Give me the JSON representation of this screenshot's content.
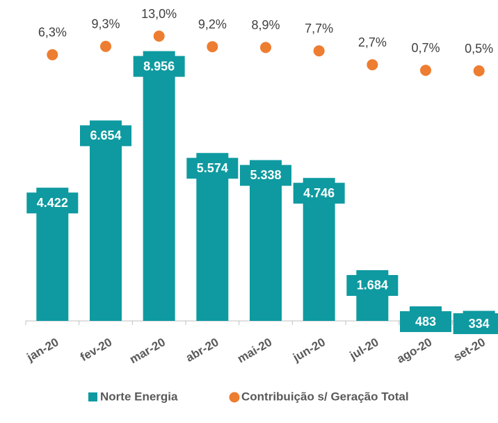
{
  "chart_data": {
    "type": "bar",
    "categories": [
      "jan-20",
      "fev-20",
      "mar-20",
      "abr-20",
      "mai-20",
      "jun-20",
      "jul-20",
      "ago-20",
      "set-20"
    ],
    "series": [
      {
        "name": "Norte Energia",
        "type": "bar",
        "color": "#0e9aa0",
        "values": [
          4422,
          6654,
          8956,
          5574,
          5338,
          4746,
          1684,
          483,
          334
        ],
        "value_labels": [
          "4.422",
          "6.654",
          "8.956",
          "5.574",
          "5.338",
          "4.746",
          "1.684",
          "483",
          "334"
        ]
      },
      {
        "name": "Contribuição s/ Geração Total",
        "type": "scatter",
        "color": "#ed7d31",
        "axis": "y2",
        "values": [
          6.3,
          9.3,
          13.0,
          9.2,
          8.9,
          7.7,
          2.7,
          0.7,
          0.5
        ],
        "value_labels": [
          "6,3%",
          "9,3%",
          "13,0%",
          "9,2%",
          "8,9%",
          "7,7%",
          "2,7%",
          "0,7%",
          "0,5%"
        ]
      }
    ],
    "ylim": [
      0,
      9500
    ],
    "y2lim": [
      -89.5,
      13.5
    ],
    "legend": "bottom"
  }
}
